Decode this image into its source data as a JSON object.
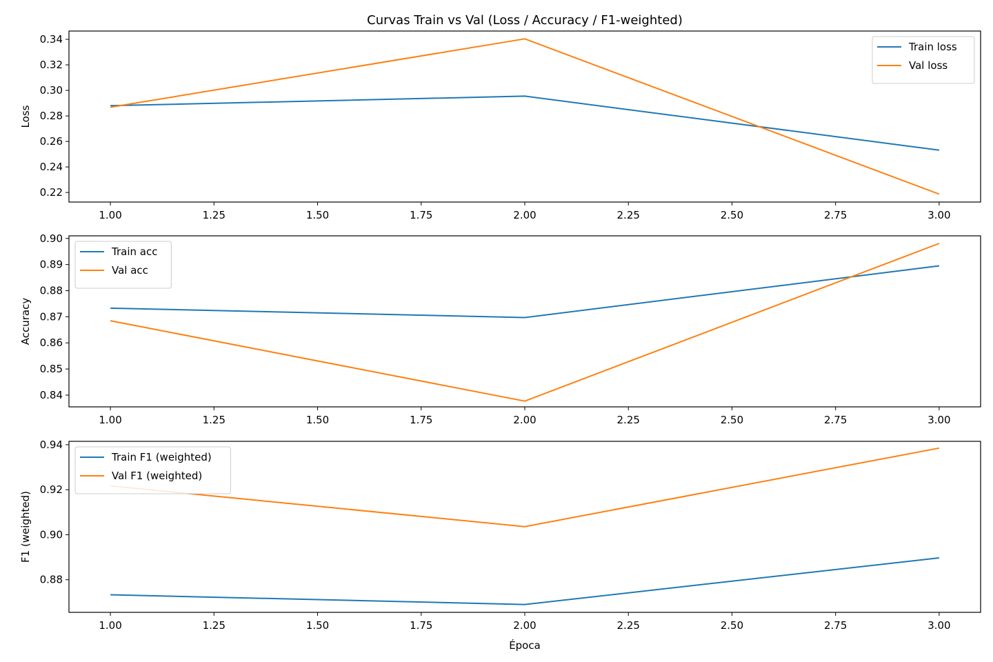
{
  "title": "Curvas Train vs Val (Loss / Accuracy / F1-weighted)",
  "xlabel": "Época",
  "colors": {
    "train": "#1f77b4",
    "val": "#ff7f0e"
  },
  "chart_data": [
    {
      "type": "line",
      "ylabel": "Loss",
      "x": [
        1,
        2,
        3
      ],
      "xlim": [
        0.9,
        3.1
      ],
      "xticks": [
        1.0,
        1.25,
        1.5,
        1.75,
        2.0,
        2.25,
        2.5,
        2.75,
        3.0
      ],
      "xtick_labels": [
        "1.00",
        "1.25",
        "1.50",
        "1.75",
        "2.00",
        "2.25",
        "2.50",
        "2.75",
        "3.00"
      ],
      "ylim": [
        0.2125,
        0.3465
      ],
      "yticks": [
        0.22,
        0.24,
        0.26,
        0.28,
        0.3,
        0.32,
        0.34
      ],
      "ytick_labels": [
        "0.22",
        "0.24",
        "0.26",
        "0.28",
        "0.30",
        "0.32",
        "0.34"
      ],
      "legend_position": "upper-right",
      "series": [
        {
          "name": "Train loss",
          "color_key": "train",
          "values": [
            0.288,
            0.2955,
            0.2532
          ]
        },
        {
          "name": "Val loss",
          "color_key": "val",
          "values": [
            0.2868,
            0.3404,
            0.2187
          ]
        }
      ]
    },
    {
      "type": "line",
      "ylabel": "Accuracy",
      "x": [
        1,
        2,
        3
      ],
      "xlim": [
        0.9,
        3.1
      ],
      "xticks": [
        1.0,
        1.25,
        1.5,
        1.75,
        2.0,
        2.25,
        2.5,
        2.75,
        3.0
      ],
      "xtick_labels": [
        "1.00",
        "1.25",
        "1.50",
        "1.75",
        "2.00",
        "2.25",
        "2.50",
        "2.75",
        "3.00"
      ],
      "ylim": [
        0.8355,
        0.901
      ],
      "yticks": [
        0.84,
        0.85,
        0.86,
        0.87,
        0.88,
        0.89,
        0.9
      ],
      "ytick_labels": [
        "0.84",
        "0.85",
        "0.86",
        "0.87",
        "0.88",
        "0.89",
        "0.90"
      ],
      "legend_position": "upper-left",
      "series": [
        {
          "name": "Train acc",
          "color_key": "train",
          "values": [
            0.8733,
            0.8697,
            0.8895
          ]
        },
        {
          "name": "Val acc",
          "color_key": "val",
          "values": [
            0.8685,
            0.8377,
            0.8981
          ]
        }
      ]
    },
    {
      "type": "line",
      "ylabel": "F1 (weighted)",
      "x": [
        1,
        2,
        3
      ],
      "xlim": [
        0.9,
        3.1
      ],
      "xticks": [
        1.0,
        1.25,
        1.5,
        1.75,
        2.0,
        2.25,
        2.5,
        2.75,
        3.0
      ],
      "xtick_labels": [
        "1.00",
        "1.25",
        "1.50",
        "1.75",
        "2.00",
        "2.25",
        "2.50",
        "2.75",
        "3.00"
      ],
      "ylim": [
        0.8655,
        0.9415
      ],
      "yticks": [
        0.88,
        0.9,
        0.92,
        0.94
      ],
      "ytick_labels": [
        "0.88",
        "0.90",
        "0.92",
        "0.94"
      ],
      "legend_position": "upper-left",
      "series": [
        {
          "name": "Train F1 (weighted)",
          "color_key": "train",
          "values": [
            0.8733,
            0.869,
            0.8897
          ]
        },
        {
          "name": "Val F1 (weighted)",
          "color_key": "val",
          "values": [
            0.9217,
            0.9036,
            0.9385
          ]
        }
      ]
    }
  ]
}
